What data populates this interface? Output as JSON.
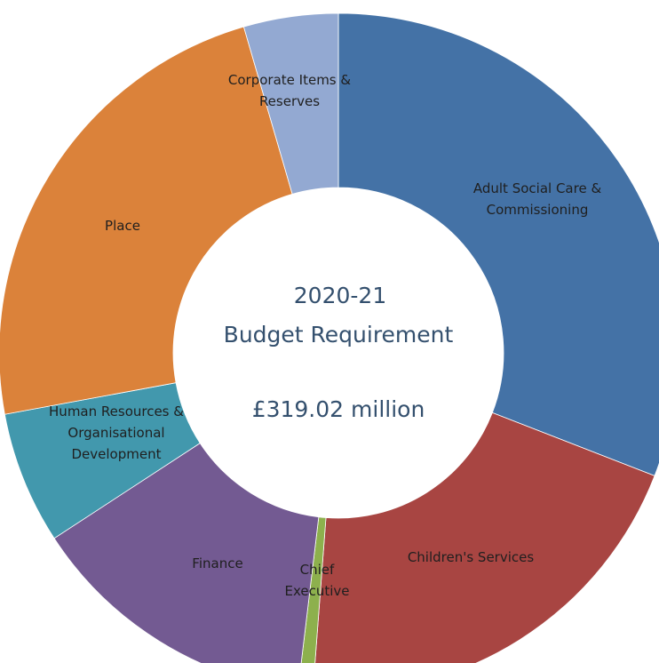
{
  "chart_data": {
    "type": "pie",
    "variant": "donut",
    "title_lines": [
      "2020-21",
      "Budget Requirement"
    ],
    "total_label": "£319.02 million",
    "start_angle_deg": 0,
    "direction": "clockwise",
    "slices": [
      {
        "name": "Adult Social Care & Commissioning",
        "label_lines": [
          "Adult Social Care &",
          "Commissioning"
        ],
        "value": 30.9,
        "color": "#4472a6"
      },
      {
        "name": "Children's Services",
        "label_lines": [
          "Children's Services"
        ],
        "value": 20.3,
        "color": "#a84542"
      },
      {
        "name": "Chief Executive",
        "label_lines": [
          "Chief",
          "Executive"
        ],
        "value": 0.7,
        "color": "#8db04d"
      },
      {
        "name": "Finance",
        "label_lines": [
          "Finance"
        ],
        "value": 13.9,
        "color": "#735a92"
      },
      {
        "name": "Human Resources & Organisational Development",
        "label_lines": [
          "Human Resources &",
          "Organisational",
          "Development"
        ],
        "value": 6.3,
        "color": "#4298ad"
      },
      {
        "name": "Place",
        "label_lines": [
          "Place"
        ],
        "value": 23.4,
        "color": "#db823a"
      },
      {
        "name": "Corporate Items & Reserves",
        "label_lines": [
          "Corporate Items &",
          "Reserves"
        ],
        "value": 4.5,
        "color": "#93a9d2"
      }
    ]
  }
}
